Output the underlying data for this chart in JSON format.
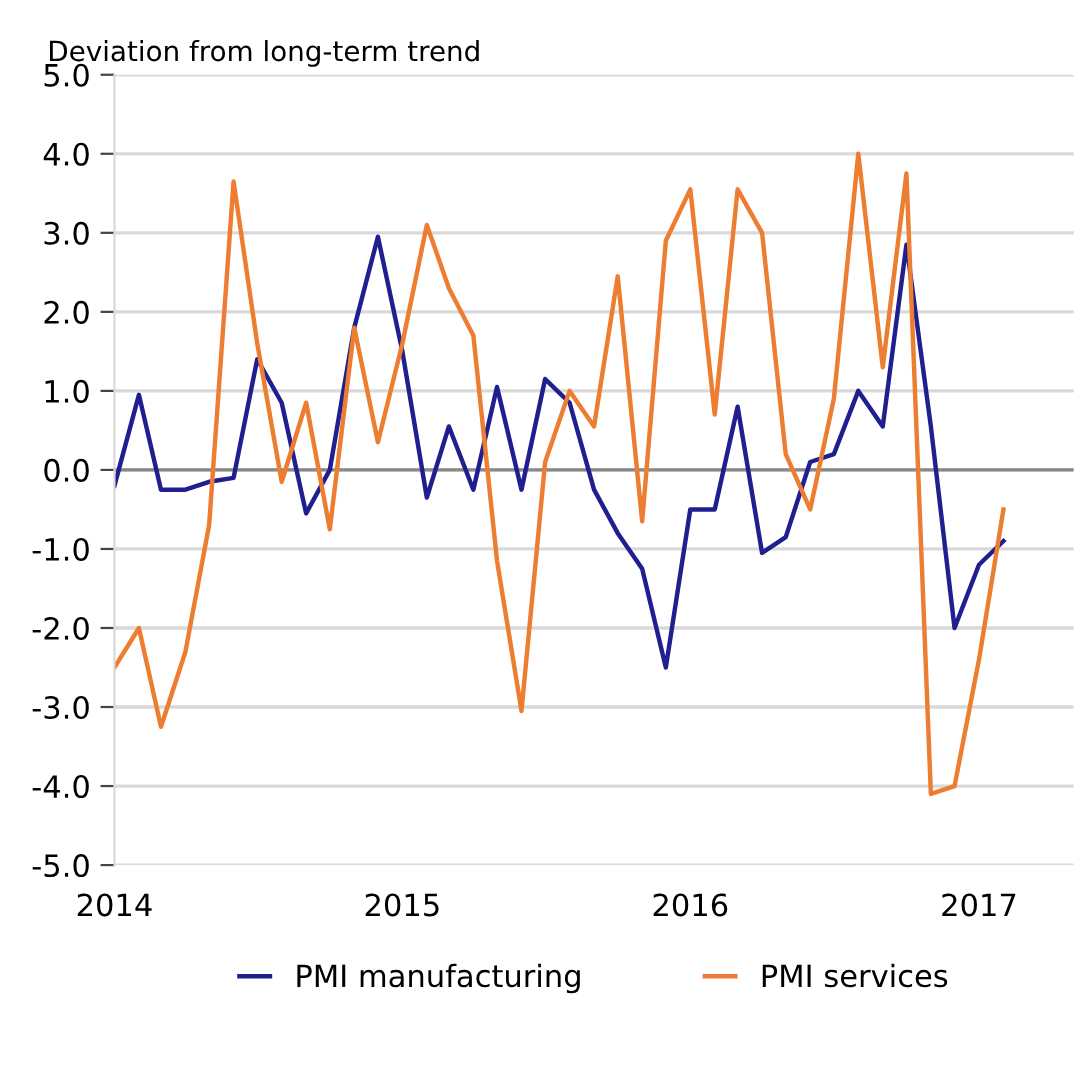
{
  "chart_data": {
    "type": "line",
    "ylabel": "Deviation from long-term trend",
    "x": [
      "2014-01",
      "2014-02",
      "2014-03",
      "2014-04",
      "2014-05",
      "2014-06",
      "2014-07",
      "2014-08",
      "2014-09",
      "2014-10",
      "2014-11",
      "2014-12",
      "2015-01",
      "2015-02",
      "2015-03",
      "2015-04",
      "2015-05",
      "2015-06",
      "2015-07",
      "2015-08",
      "2015-09",
      "2015-10",
      "2015-11",
      "2015-12",
      "2016-01",
      "2016-02",
      "2016-03",
      "2016-04",
      "2016-05",
      "2016-06",
      "2016-07",
      "2016-08",
      "2016-09",
      "2016-10",
      "2016-11",
      "2016-12",
      "2017-01",
      "2017-02"
    ],
    "series": [
      {
        "name": "PMI manufacturing",
        "color": "#1f1f8f",
        "values": [
          -0.2,
          0.95,
          -0.25,
          -0.25,
          -0.15,
          -0.1,
          1.4,
          0.85,
          -0.55,
          0.0,
          1.8,
          2.95,
          1.5,
          -0.35,
          0.55,
          -0.25,
          1.05,
          -0.25,
          1.15,
          0.85,
          -0.25,
          -0.8,
          -1.25,
          -2.5,
          -0.5,
          -0.5,
          0.8,
          -1.05,
          -0.85,
          0.1,
          0.2,
          1.0,
          0.55,
          2.85,
          0.55,
          -2.0,
          -1.2,
          -0.9
        ]
      },
      {
        "name": "PMI services",
        "color": "#ed7d31",
        "values": [
          -2.5,
          -2.0,
          -3.25,
          -2.3,
          -0.7,
          3.65,
          1.6,
          -0.15,
          0.85,
          -0.75,
          1.8,
          0.35,
          1.6,
          3.1,
          2.3,
          1.7,
          -1.15,
          -3.05,
          0.1,
          1.0,
          0.55,
          2.45,
          -0.65,
          2.9,
          3.55,
          0.7,
          3.55,
          3.0,
          0.2,
          -0.5,
          0.9,
          4.0,
          1.3,
          3.75,
          -4.1,
          -4.0,
          -2.4,
          -0.5
        ]
      }
    ],
    "xlim": [
      "2014-01",
      "2017-05"
    ],
    "xticks": [
      {
        "value": "2014-01",
        "label": "2014"
      },
      {
        "value": "2015-01",
        "label": "2015"
      },
      {
        "value": "2016-01",
        "label": "2016"
      },
      {
        "value": "2017-01",
        "label": "2017"
      }
    ],
    "ylim": [
      -5,
      5
    ],
    "yticks": [
      {
        "value": 5,
        "label": "5.0"
      },
      {
        "value": 4,
        "label": "4.0"
      },
      {
        "value": 3,
        "label": "3.0"
      },
      {
        "value": 2,
        "label": "2.0"
      },
      {
        "value": 1,
        "label": "1.0"
      },
      {
        "value": 0,
        "label": "0.0"
      },
      {
        "value": -1,
        "label": "-1.0"
      },
      {
        "value": -2,
        "label": "-2.0"
      },
      {
        "value": -3,
        "label": "-3.0"
      },
      {
        "value": -4,
        "label": "-4.0"
      },
      {
        "value": -5,
        "label": "-5.0"
      }
    ],
    "grid": "y",
    "legend": "bottom",
    "marker": "none",
    "line_style": "solid"
  }
}
